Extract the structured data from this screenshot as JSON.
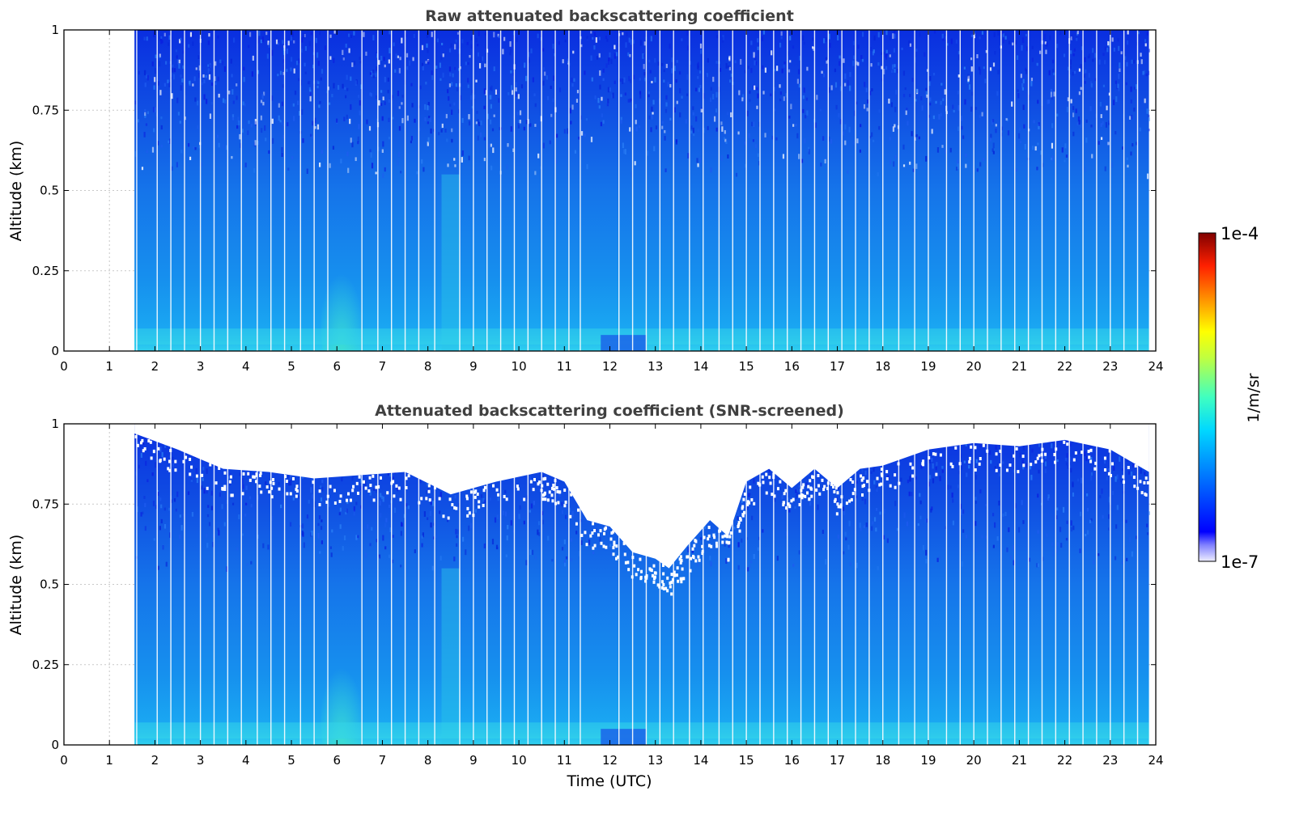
{
  "chart_data": [
    {
      "type": "heatmap",
      "title": "Raw attenuated backscattering coefficient",
      "xlabel": "",
      "ylabel": "Altitude (km)",
      "xlim": [
        0,
        24
      ],
      "ylim": [
        0,
        1
      ],
      "x_ticks": [
        "0",
        "1",
        "2",
        "3",
        "4",
        "5",
        "6",
        "7",
        "8",
        "9",
        "10",
        "11",
        "12",
        "13",
        "14",
        "15",
        "16",
        "17",
        "18",
        "19",
        "20",
        "21",
        "22",
        "23",
        "24"
      ],
      "y_ticks": [
        "0",
        "0.25",
        "0.5",
        "0.75",
        "1"
      ],
      "grid": true,
      "data_time_range_utc": [
        1.55,
        23.85
      ],
      "colorscale": "jet",
      "color_scale": "log",
      "color_range": [
        1e-07,
        0.0001
      ],
      "screened": false
    },
    {
      "type": "heatmap",
      "title": "Attenuated backscattering coefficient (SNR-screened)",
      "xlabel": "Time (UTC)",
      "ylabel": "Altitude (km)",
      "xlim": [
        0,
        24
      ],
      "ylim": [
        0,
        1
      ],
      "x_ticks": [
        "0",
        "1",
        "2",
        "3",
        "4",
        "5",
        "6",
        "7",
        "8",
        "9",
        "10",
        "11",
        "12",
        "13",
        "14",
        "15",
        "16",
        "17",
        "18",
        "19",
        "20",
        "21",
        "22",
        "23",
        "24"
      ],
      "y_ticks": [
        "0",
        "0.25",
        "0.5",
        "0.75",
        "1"
      ],
      "grid": true,
      "data_time_range_utc": [
        1.55,
        23.85
      ],
      "colorscale": "jet",
      "color_scale": "log",
      "color_range": [
        1e-07,
        0.0001
      ],
      "screened": true,
      "screened_top_profile": {
        "t": [
          1.55,
          2.5,
          3.5,
          4.5,
          5.5,
          6.5,
          7.5,
          8.5,
          9.5,
          10.5,
          11.0,
          11.5,
          12.0,
          12.5,
          13.0,
          13.3,
          13.7,
          14.2,
          14.6,
          15.0,
          15.5,
          16.0,
          16.5,
          17.0,
          17.5,
          18.0,
          19.0,
          20.0,
          21.0,
          22.0,
          23.0,
          23.85
        ],
        "alt_km": [
          0.97,
          0.92,
          0.86,
          0.85,
          0.83,
          0.84,
          0.85,
          0.78,
          0.82,
          0.85,
          0.82,
          0.7,
          0.68,
          0.6,
          0.58,
          0.55,
          0.62,
          0.7,
          0.65,
          0.82,
          0.86,
          0.8,
          0.86,
          0.8,
          0.86,
          0.87,
          0.92,
          0.94,
          0.93,
          0.95,
          0.92,
          0.85
        ]
      }
    }
  ],
  "colorbar": {
    "label": "1/m/sr",
    "max_label": "1e-4",
    "min_label": "1e-7",
    "colors": [
      "#7f0000",
      "#ff0000",
      "#ff8000",
      "#ffff00",
      "#80ff80",
      "#00ffff",
      "#0080ff",
      "#0000ff",
      "#00008f"
    ]
  }
}
